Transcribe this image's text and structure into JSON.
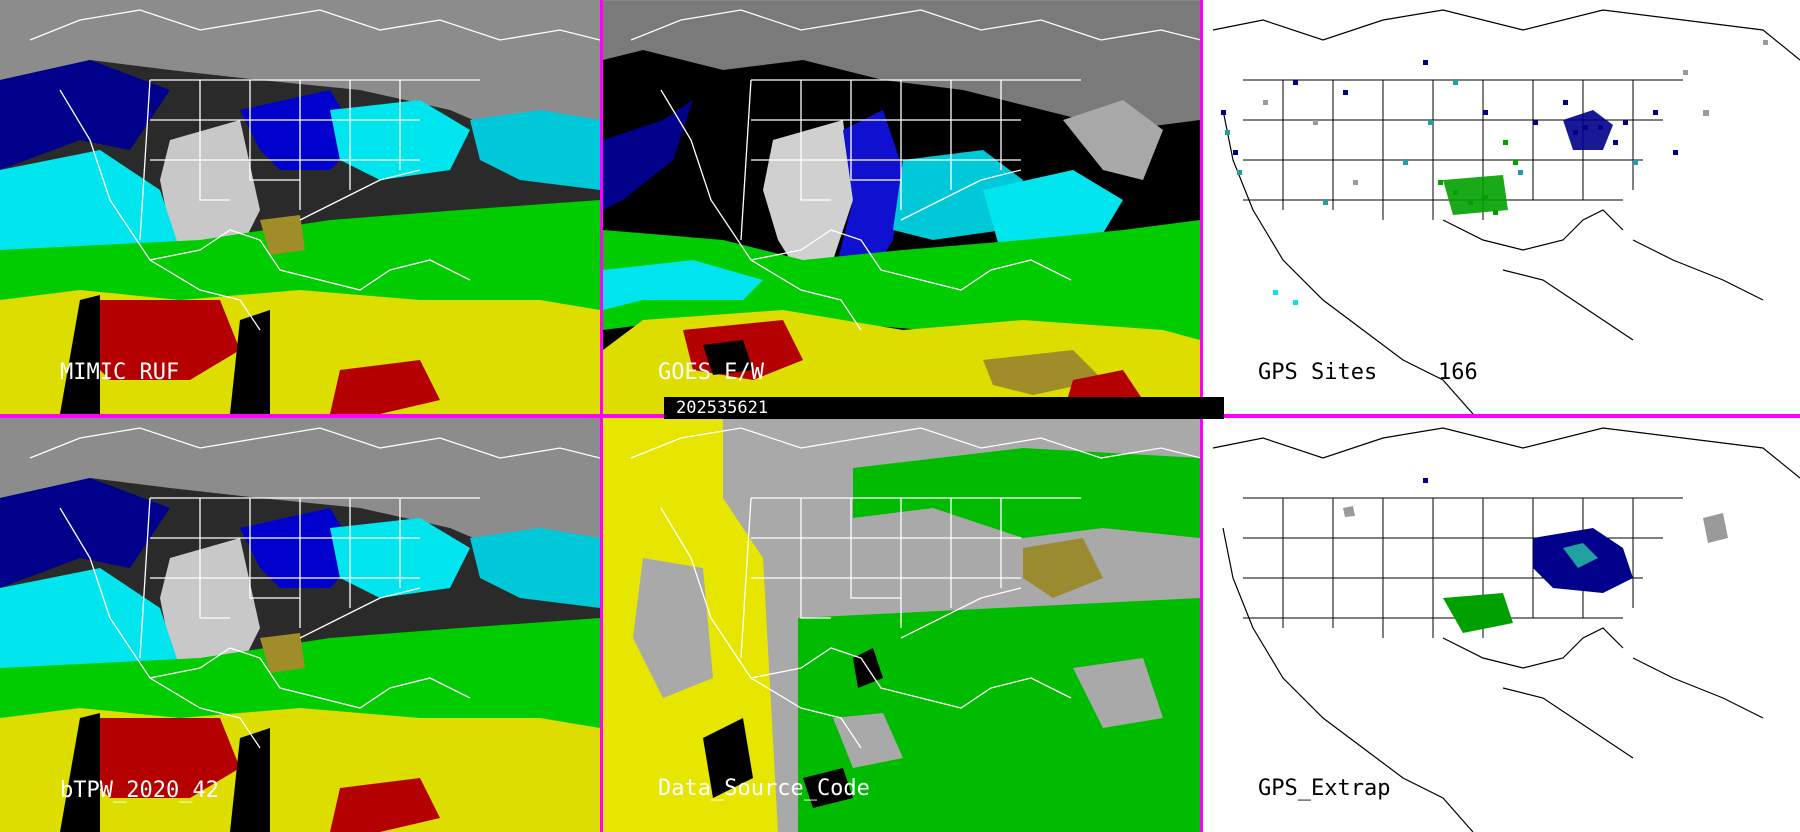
{
  "colors": {
    "divider": "#ff00ff",
    "moist_dark_blue": "#00008b",
    "moist_blue": "#0000ff",
    "moist_cyan": "#00e5ee",
    "moist_green": "#00dd00",
    "moist_yellow": "#dddd00",
    "moist_olive": "#a08c28",
    "moist_red": "#b40000",
    "dry_gray": "#c8c8c8",
    "source_yellow": "#e6e600",
    "source_green": "#00bb00",
    "source_gray": "#a9a9a9",
    "source_olive": "#9b8b30",
    "gps_navy": "#000080",
    "gps_teal": "#20a0a0",
    "gps_green": "#00a000",
    "gps_gray": "#9a9a9a"
  },
  "timestamp": "202535621",
  "panels": [
    {
      "id": "mimic-ruf",
      "label": "MIMIC RUF",
      "type": "tpw-field"
    },
    {
      "id": "goes-ew",
      "label": "GOES E/W",
      "type": "satellite-field"
    },
    {
      "id": "gps-sites",
      "label": "GPS Sites",
      "count": "166",
      "type": "station-map"
    },
    {
      "id": "btpw",
      "label": "bTPW_2020_42",
      "type": "tpw-field"
    },
    {
      "id": "data-source-code",
      "label": "Data_Source_Code",
      "type": "source-map"
    },
    {
      "id": "gps-extrap",
      "label": "GPS_Extrap",
      "type": "station-map"
    }
  ]
}
